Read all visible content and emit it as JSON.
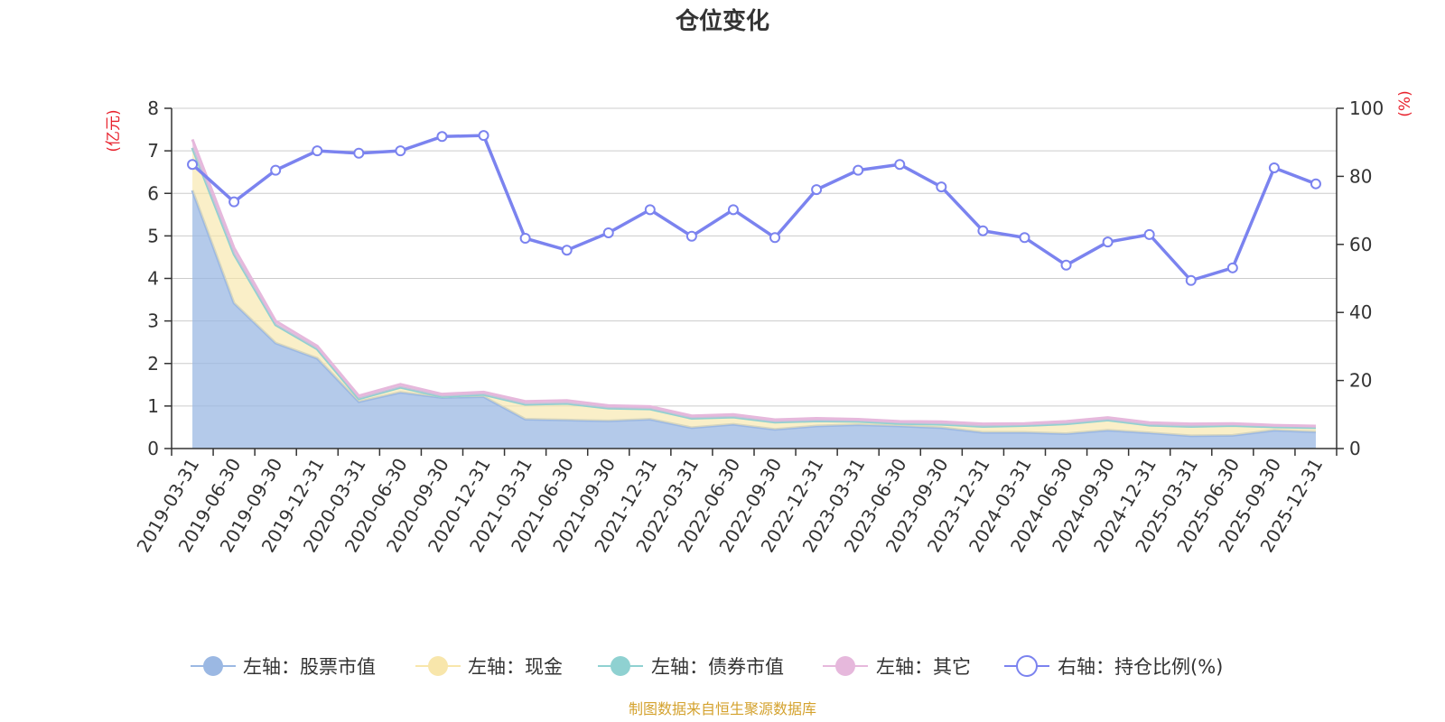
{
  "chart_data": {
    "type": "area",
    "title": "仓位变化",
    "left_axis_unit": "(亿元)",
    "right_axis_unit": "(%)",
    "categories": [
      "2019-03-31",
      "2019-06-30",
      "2019-09-30",
      "2019-12-31",
      "2020-03-31",
      "2020-06-30",
      "2020-09-30",
      "2020-12-31",
      "2021-03-31",
      "2021-06-30",
      "2021-09-30",
      "2021-12-31",
      "2022-03-31",
      "2022-06-30",
      "2022-09-30",
      "2022-12-31",
      "2023-03-31",
      "2023-06-30",
      "2023-09-30",
      "2023-12-31",
      "2024-03-31",
      "2024-06-30",
      "2024-09-30",
      "2024-12-31",
      "2025-03-31",
      "2025-06-30",
      "2025-09-30",
      "2025-12-31"
    ],
    "left_ylim": [
      0,
      8
    ],
    "left_ticks": [
      0,
      1,
      2,
      3,
      4,
      5,
      6,
      7,
      8
    ],
    "right_ylim": [
      0,
      100
    ],
    "right_ticks": [
      0,
      20,
      40,
      60,
      80,
      100
    ],
    "grid": true,
    "legend_position": "bottom",
    "series": [
      {
        "name": "左轴：股票市值",
        "axis": "left",
        "stack": true,
        "color": "#9bb8e3",
        "values": [
          6.07,
          3.42,
          2.48,
          2.12,
          1.1,
          1.32,
          1.2,
          1.22,
          0.69,
          0.67,
          0.65,
          0.69,
          0.49,
          0.57,
          0.45,
          0.53,
          0.56,
          0.53,
          0.49,
          0.38,
          0.38,
          0.35,
          0.43,
          0.37,
          0.3,
          0.31,
          0.43,
          0.39
        ]
      },
      {
        "name": "左轴：现金",
        "axis": "left",
        "stack": true,
        "color": "#f8e6ab",
        "values": [
          1.0,
          1.15,
          0.43,
          0.22,
          0.07,
          0.12,
          0.02,
          0.05,
          0.35,
          0.39,
          0.3,
          0.24,
          0.22,
          0.17,
          0.17,
          0.12,
          0.08,
          0.06,
          0.08,
          0.14,
          0.16,
          0.23,
          0.24,
          0.18,
          0.22,
          0.23,
          0.08,
          0.1
        ]
      },
      {
        "name": "左轴：债券市值",
        "axis": "left",
        "stack": true,
        "color": "#8fd1d1",
        "values": [
          0,
          0,
          0,
          0,
          0,
          0,
          0,
          0,
          0,
          0,
          0,
          0,
          0,
          0,
          0,
          0,
          0,
          0,
          0,
          0,
          0,
          0,
          0,
          0,
          0,
          0,
          0,
          0
        ]
      },
      {
        "name": "左轴：其它",
        "axis": "left",
        "stack": true,
        "color": "#e6b8dc",
        "values": [
          0.2,
          0.15,
          0.09,
          0.07,
          0.07,
          0.07,
          0.06,
          0.06,
          0.07,
          0.07,
          0.06,
          0.06,
          0.06,
          0.06,
          0.06,
          0.06,
          0.05,
          0.05,
          0.06,
          0.06,
          0.05,
          0.06,
          0.06,
          0.06,
          0.06,
          0.05,
          0.04,
          0.04
        ]
      },
      {
        "name": "右轴：持仓比例(%)",
        "axis": "right",
        "type": "line",
        "color": "#7b83ef",
        "values": [
          83.5,
          72.5,
          81.8,
          87.5,
          86.8,
          87.5,
          91.7,
          92.0,
          61.8,
          58.3,
          63.4,
          70.2,
          62.4,
          70.2,
          62.0,
          76.1,
          81.8,
          83.5,
          76.9,
          64.0,
          62.0,
          53.9,
          60.7,
          62.9,
          49.4,
          53.1,
          82.5,
          77.8
        ]
      }
    ],
    "source": "制图数据来自恒生聚源数据库"
  }
}
